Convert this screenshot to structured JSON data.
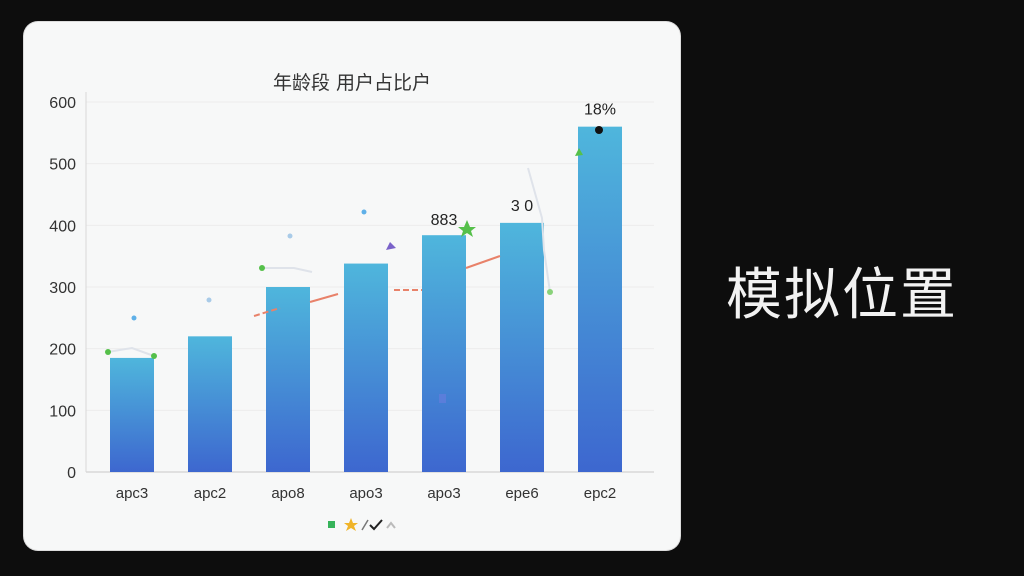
{
  "side_text": "模拟位置",
  "chart_data": {
    "type": "bar",
    "title": "年龄段 用户占比户",
    "categories": [
      "apc3",
      "apc2",
      "apo8",
      "apo3",
      "apo3",
      "epe6",
      "epc2"
    ],
    "values": [
      185,
      220,
      300,
      338,
      384,
      404,
      560
    ],
    "ylim": [
      0,
      600
    ],
    "yticks": [
      0,
      100,
      200,
      300,
      400,
      500,
      600
    ],
    "data_labels": [
      {
        "index": 4,
        "text": "883"
      },
      {
        "index": 5,
        "text": "3 0"
      },
      {
        "index": 6,
        "text": "18%"
      }
    ],
    "grid": true,
    "legend": "bottom",
    "legend_icons": [
      "green-square-icon",
      "star-icon",
      "check-icon",
      "chevron-up-icon"
    ],
    "colors": {
      "bar_top": "#4fb6dc",
      "bar_bottom": "#3d6fd0",
      "accent_green": "#55c04a",
      "accent_red": "#e8826a"
    }
  }
}
